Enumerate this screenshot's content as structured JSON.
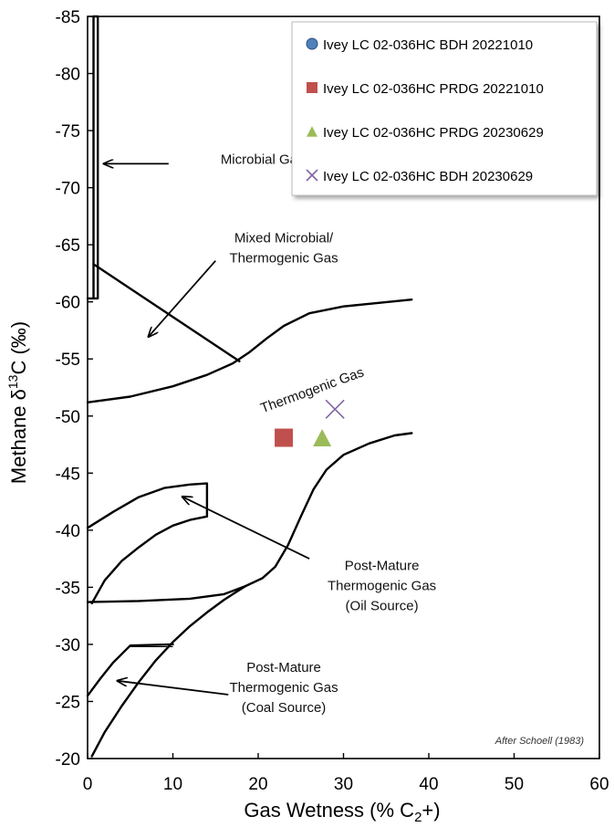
{
  "chart_data": {
    "type": "scatter",
    "xlabel": "Gas Wetness (% C",
    "xlabel_sub": "2",
    "xlabel_tail": "+)",
    "ylabel": "Methane  δ",
    "ylabel_sup": "13",
    "ylabel_tail": "C (‰)",
    "xlim": [
      0,
      60
    ],
    "ylim": [
      -85,
      -20
    ],
    "y_reversed": true,
    "x_ticks": [
      0,
      10,
      20,
      30,
      40,
      50,
      60
    ],
    "x_tick_labels": [
      "0",
      "10",
      "20",
      "30",
      "40",
      "50",
      "60"
    ],
    "y_ticks": [
      -85,
      -80,
      -75,
      -70,
      -65,
      -60,
      -55,
      -50,
      -45,
      -40,
      -35,
      -30,
      -25,
      -20
    ],
    "y_tick_labels": [
      "-85",
      "-80",
      "-75",
      "-70",
      "-65",
      "-60",
      "-55",
      "-50",
      "-45",
      "-40",
      "-35",
      "-30",
      "-25",
      "-20"
    ],
    "grid": false,
    "legend_position": "top-right",
    "credit": "After Schoell (1983)",
    "series": [
      {
        "name": "Ivey LC 02-036HC BDH 20221010",
        "marker": "circle",
        "color": "#4f81bd",
        "points": []
      },
      {
        "name": "Ivey LC 02-036HC PRDG 20221010",
        "marker": "square",
        "color": "#c0504d",
        "points": [
          [
            23,
            -48.1
          ]
        ]
      },
      {
        "name": "Ivey LC 02-036HC PRDG 20230629",
        "marker": "triangle",
        "color": "#9bbb59",
        "points": [
          [
            27.5,
            -48.1
          ]
        ]
      },
      {
        "name": "Ivey LC 02-036HC BDH 20230629",
        "marker": "x",
        "color": "#8064a2",
        "points": [
          [
            29,
            -50.6
          ]
        ]
      }
    ],
    "field_boundaries": [
      {
        "id": "microbial-bracket",
        "points": [
          [
            0,
            -60.3
          ],
          [
            0.7,
            -60.3
          ],
          [
            0.7,
            -85
          ],
          [
            1.2,
            -85
          ],
          [
            1.2,
            -60.3
          ],
          [
            0,
            -60.3
          ]
        ]
      },
      {
        "id": "mixed-diagonal",
        "points": [
          [
            0.7,
            -63.3
          ],
          [
            17.8,
            -54.8
          ]
        ]
      },
      {
        "id": "thermogenic-upper",
        "points": [
          [
            0,
            -51.2
          ],
          [
            5,
            -51.7
          ],
          [
            10,
            -52.6
          ],
          [
            14,
            -53.6
          ],
          [
            17,
            -54.6
          ],
          [
            19,
            -55.6
          ],
          [
            21,
            -56.8
          ],
          [
            23,
            -57.9
          ],
          [
            26,
            -59.0
          ],
          [
            30,
            -59.6
          ],
          [
            34,
            -59.9
          ],
          [
            38,
            -60.2
          ]
        ]
      },
      {
        "id": "thermogenic-lower",
        "points": [
          [
            18.5,
            -35.1
          ],
          [
            20.5,
            -35.8
          ],
          [
            22,
            -36.8
          ],
          [
            23.5,
            -38.7
          ],
          [
            25,
            -41.2
          ],
          [
            26.5,
            -43.6
          ],
          [
            28,
            -45.3
          ],
          [
            30,
            -46.6
          ],
          [
            33,
            -47.6
          ],
          [
            36,
            -48.3
          ],
          [
            38,
            -48.5
          ]
        ]
      },
      {
        "id": "oil-upper",
        "points": [
          [
            0,
            -40.2
          ],
          [
            3,
            -41.6
          ],
          [
            6,
            -42.9
          ],
          [
            9,
            -43.7
          ],
          [
            12,
            -44.0
          ],
          [
            14,
            -44.1
          ],
          [
            14,
            -41.2
          ]
        ]
      },
      {
        "id": "oil-inner",
        "points": [
          [
            0.5,
            -33.6
          ],
          [
            2,
            -35.6
          ],
          [
            4,
            -37.3
          ],
          [
            6,
            -38.5
          ],
          [
            8,
            -39.6
          ],
          [
            10,
            -40.4
          ],
          [
            12,
            -40.9
          ],
          [
            14,
            -41.2
          ]
        ]
      },
      {
        "id": "oil-bottom",
        "points": [
          [
            0,
            -33.7
          ],
          [
            6,
            -33.8
          ],
          [
            12,
            -34.0
          ],
          [
            16,
            -34.4
          ],
          [
            18.5,
            -35.1
          ]
        ]
      },
      {
        "id": "coal-lower",
        "points": [
          [
            0.5,
            -20.2
          ],
          [
            2,
            -22.3
          ],
          [
            4,
            -24.6
          ],
          [
            6,
            -26.7
          ],
          [
            8,
            -28.6
          ],
          [
            10,
            -30.2
          ],
          [
            12,
            -31.6
          ],
          [
            14,
            -32.8
          ],
          [
            16,
            -33.9
          ],
          [
            18.5,
            -35.1
          ]
        ]
      },
      {
        "id": "coal-upper",
        "points": [
          [
            0,
            -25.5
          ],
          [
            1.5,
            -27.0
          ],
          [
            3,
            -28.4
          ],
          [
            5,
            -29.9
          ],
          [
            10,
            -30.0
          ]
        ]
      }
    ],
    "annotations": [
      {
        "id": "microbial",
        "lines": [
          "Microbial Gas"
        ],
        "x": 20.5,
        "y": -72.1,
        "rotate": 0,
        "arrow_from": [
          9.5,
          -72.1
        ],
        "arrow_to": [
          2.0,
          -72.1
        ]
      },
      {
        "id": "mixed",
        "lines": [
          "Mixed Microbial/",
          "Thermogenic Gas"
        ],
        "x": 23,
        "y": -65.2,
        "rotate": 0,
        "arrow_from": [
          15,
          -63.6
        ],
        "arrow_to": [
          7.2,
          -57.0
        ]
      },
      {
        "id": "thermogenic",
        "lines": [
          "Thermogenic Gas"
        ],
        "x": 26.5,
        "y": -51.9,
        "rotate": -20,
        "arrow_from": null,
        "arrow_to": null
      },
      {
        "id": "oil",
        "lines": [
          "Post-Mature",
          "Thermogenic Gas",
          "(Oil Source)"
        ],
        "x": 34.5,
        "y": -36.5,
        "rotate": 0,
        "arrow_from": [
          26,
          -37.5
        ],
        "arrow_to": [
          11.2,
          -42.9
        ]
      },
      {
        "id": "coal",
        "lines": [
          "Post-Mature",
          "Thermogenic Gas",
          "(Coal Source)"
        ],
        "x": 23,
        "y": -27.6,
        "rotate": 0,
        "arrow_from": [
          16.5,
          -25.6
        ],
        "arrow_to": [
          3.6,
          -26.8
        ]
      }
    ]
  }
}
